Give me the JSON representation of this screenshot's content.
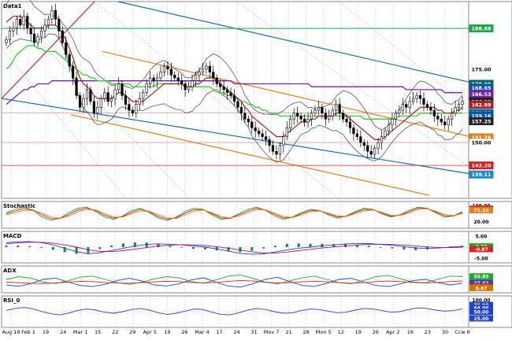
{
  "chart_data": [
    {
      "type": "candlestick",
      "panel": "price",
      "name": "Data1",
      "ylim": [
        131,
        198
      ],
      "price_labels": [
        {
          "value": 188.86,
          "color": "#1aa64a"
        },
        {
          "value": 175.0,
          "color": "#ffffff"
        },
        {
          "value": 170.0,
          "color": "#006666"
        },
        {
          "value": 168.65,
          "color": "#0055aa"
        },
        {
          "value": 166.53,
          "color": "#7722aa"
        },
        {
          "value": 164.02,
          "color": "#222222"
        },
        {
          "value": 162.95,
          "color": "#cc3333"
        },
        {
          "value": 162.89,
          "color": "#aa2222"
        },
        {
          "value": 160.08,
          "color": "#0066aa"
        },
        {
          "value": 159.16,
          "color": "#0055aa"
        },
        {
          "value": 157.25,
          "color": "#222222"
        },
        {
          "value": 151.76,
          "color": "#e08020"
        },
        {
          "value": 150.0,
          "color": "#ffffff"
        },
        {
          "value": 142.2,
          "color": "#cc2222"
        },
        {
          "value": 139.11,
          "color": "#2288cc"
        }
      ],
      "x_labels": [
        "Aug 19",
        "Feb 1",
        "19",
        "24",
        "Mar 1",
        "15",
        "22",
        "29",
        "Apr 5",
        "19",
        "26",
        "Mar 4",
        "17",
        "24",
        "31",
        "Mov 7",
        "21",
        "28",
        "Mon 5",
        "12",
        "19",
        "26",
        "Apr 2",
        "16",
        "23",
        "30",
        "Ccw 6"
      ],
      "closes": [
        185,
        188,
        189,
        192,
        190,
        193,
        189,
        187,
        184,
        186,
        188,
        190,
        192,
        195,
        192,
        188,
        184,
        180,
        176,
        172,
        166,
        162,
        165,
        168,
        164,
        160,
        162,
        165,
        167,
        164,
        165,
        168,
        170,
        166,
        163,
        161,
        160,
        163,
        165,
        167,
        170,
        172,
        171,
        172,
        174,
        176,
        175,
        173,
        172,
        171,
        170,
        168,
        169,
        171,
        173,
        174,
        175,
        176,
        174,
        172,
        170,
        169,
        168,
        167,
        166,
        164,
        162,
        160,
        158,
        157,
        155,
        154,
        153,
        152,
        151,
        149,
        147,
        146,
        149,
        152,
        155,
        158,
        160,
        159,
        158,
        157,
        158,
        160,
        161,
        162,
        160,
        158,
        159,
        161,
        163,
        160,
        158,
        157,
        155,
        153,
        152,
        150,
        149,
        147,
        146,
        148,
        150,
        152,
        154,
        156,
        158,
        160,
        161,
        163,
        162,
        164,
        165,
        166,
        165,
        163,
        162,
        161,
        159,
        158,
        157,
        156,
        158,
        160,
        162,
        163,
        164
      ],
      "mid_band": [
        191,
        192,
        193,
        193,
        193,
        192,
        191,
        190,
        189,
        189,
        189,
        189,
        190,
        190,
        190,
        189,
        187,
        185,
        182,
        179,
        175,
        172,
        170,
        169,
        168,
        166,
        165,
        165,
        165,
        165,
        165,
        166,
        167,
        167,
        166,
        165,
        164,
        164,
        164,
        164,
        165,
        166,
        167,
        168,
        169,
        170,
        170,
        170,
        170,
        170,
        170,
        169,
        169,
        169,
        170,
        170,
        171,
        172,
        172,
        172,
        171,
        170,
        169,
        168,
        167,
        166,
        165,
        164,
        162,
        161,
        159,
        158,
        157,
        156,
        155,
        154,
        153,
        152,
        152,
        152,
        153,
        154,
        155,
        156,
        157,
        157,
        157,
        158,
        158,
        159,
        159,
        159,
        159,
        159,
        160,
        160,
        160,
        159,
        158,
        157,
        156,
        155,
        154,
        153,
        152,
        151,
        151,
        151,
        152,
        153,
        154,
        155,
        156,
        157,
        158,
        159,
        160,
        161,
        162,
        162,
        162,
        162,
        162,
        161,
        161,
        160,
        160,
        160,
        161,
        161,
        162
      ],
      "ma_green": [
        175,
        176,
        178,
        180,
        181,
        182,
        183,
        183,
        183,
        182,
        182,
        181,
        181,
        181,
        181,
        180,
        179,
        178,
        177,
        176,
        175,
        174,
        173,
        173,
        172,
        172,
        171,
        171,
        171,
        171,
        170,
        170,
        170,
        170,
        170,
        170,
        169,
        169,
        169,
        169,
        169,
        169,
        169,
        170,
        170,
        170,
        170,
        170,
        170,
        170,
        170,
        169,
        169,
        169,
        169,
        169,
        169,
        169,
        169,
        168,
        168,
        167,
        167,
        166,
        166,
        165,
        165,
        164,
        164,
        163,
        163,
        162,
        162,
        161,
        161,
        160,
        160,
        160,
        159,
        159,
        159,
        159,
        159,
        159,
        159,
        159,
        159,
        159,
        159,
        159,
        159,
        159,
        159,
        159,
        159,
        159,
        159,
        159,
        159,
        159,
        159,
        159,
        158,
        158,
        158,
        158,
        158,
        158,
        158,
        158,
        158,
        158,
        159,
        159,
        159,
        159,
        159,
        159,
        160,
        160,
        160,
        160,
        160,
        160,
        160,
        160,
        160,
        160,
        160,
        160,
        160
      ],
      "ma_purple": [
        163,
        164,
        165,
        166,
        167,
        168,
        168,
        169,
        169,
        170,
        170,
        170,
        170,
        171,
        171,
        171,
        171,
        171,
        171,
        171,
        171,
        171,
        171,
        171,
        171,
        171,
        171,
        171,
        171,
        171,
        171,
        171,
        171,
        171,
        171,
        171,
        171,
        171,
        171,
        171,
        171,
        171,
        171,
        171,
        171,
        171,
        171,
        171,
        171,
        171,
        171,
        171,
        171,
        171,
        171,
        171,
        171,
        171,
        171,
        171,
        171,
        171,
        171,
        171,
        171,
        170,
        170,
        170,
        170,
        170,
        170,
        170,
        170,
        170,
        170,
        170,
        170,
        170,
        170,
        170,
        170,
        170,
        170,
        170,
        170,
        170,
        170,
        169,
        169,
        169,
        169,
        169,
        169,
        169,
        169,
        169,
        169,
        169,
        169,
        169,
        169,
        169,
        169,
        169,
        169,
        169,
        169,
        169,
        169,
        169,
        169,
        169,
        169,
        169,
        168,
        168,
        168,
        168,
        168,
        168,
        168,
        168,
        168,
        168,
        168,
        167,
        167,
        167,
        167,
        167,
        167
      ]
    },
    {
      "type": "line",
      "panel": "indicator",
      "name": "Stochastic",
      "ylim": [
        0,
        100
      ],
      "tick_labels": [
        {
          "value": 100.0,
          "color": "#ffffff"
        },
        {
          "value": 77.55,
          "color": "#dd2222"
        },
        {
          "value": 71.1,
          "color": "#e08020"
        },
        {
          "value": 20.0,
          "color": "#ffffff"
        }
      ],
      "series": [
        {
          "color": "#22aa22",
          "values": [
            60,
            75,
            85,
            70,
            40,
            25,
            35,
            60,
            80,
            85,
            65,
            40,
            30,
            45,
            70,
            80,
            60,
            35,
            25,
            40,
            65,
            80,
            75,
            50,
            30,
            35,
            55,
            75,
            85,
            70,
            45,
            30,
            40,
            60,
            75,
            70,
            50,
            35,
            45,
            65,
            80,
            75,
            55,
            40,
            50,
            70,
            85,
            80,
            60,
            40,
            45,
            65
          ]
        },
        {
          "color": "#dd2222",
          "values": [
            55,
            68,
            78,
            72,
            50,
            32,
            33,
            52,
            72,
            80,
            70,
            48,
            35,
            42,
            62,
            75,
            65,
            42,
            30,
            36,
            58,
            74,
            74,
            56,
            36,
            34,
            50,
            68,
            80,
            72,
            52,
            36,
            38,
            55,
            70,
            70,
            55,
            40,
            43,
            60,
            75,
            74,
            58,
            44,
            48,
            64,
            80,
            80,
            64,
            46,
            44,
            60
          ]
        },
        {
          "color": "#e08020",
          "values": [
            50,
            60,
            70,
            70,
            58,
            40,
            34,
            45,
            64,
            75,
            72,
            55,
            40,
            40,
            55,
            68,
            66,
            50,
            36,
            34,
            50,
            66,
            72,
            60,
            42,
            36,
            45,
            60,
            74,
            72,
            58,
            42,
            38,
            50,
            64,
            68,
            58,
            45,
            43,
            55,
            68,
            72,
            62,
            48,
            47,
            58,
            74,
            78,
            67,
            52,
            46,
            56
          ]
        }
      ]
    },
    {
      "type": "line",
      "panel": "indicator",
      "name": "MACD",
      "ylim": [
        -6,
        6
      ],
      "tick_labels": [
        {
          "value": 5.0,
          "color": "#ffffff"
        },
        {
          "value": 0.32,
          "color": "#22aa22"
        },
        {
          "value": -0.87,
          "color": "#dd2222"
        },
        {
          "value": -5.0,
          "color": "#ffffff"
        }
      ],
      "series": [
        {
          "color": "#2244cc",
          "values": [
            2.0,
            2.4,
            2.5,
            2.0,
            1.0,
            -0.5,
            -2.0,
            -3.0,
            -2.5,
            -1.5,
            -0.5,
            0.5,
            1.2,
            1.5,
            1.3,
            1.0,
            0.5,
            0.0,
            -0.8,
            -1.8,
            -2.8,
            -3.2,
            -3.0,
            -2.2,
            -1.2,
            -0.5,
            0.0,
            0.6,
            1.0,
            1.4,
            1.6,
            1.6,
            1.2,
            0.8,
            0.2,
            -0.4,
            -0.6,
            -0.4,
            0.0,
            0.4
          ]
        },
        {
          "color": "#aa1166",
          "values": [
            1.5,
            1.9,
            2.2,
            2.2,
            1.8,
            1.0,
            0.0,
            -1.2,
            -1.9,
            -2.0,
            -1.6,
            -0.9,
            -0.2,
            0.5,
            0.9,
            1.1,
            1.0,
            0.7,
            0.2,
            -0.5,
            -1.3,
            -2.1,
            -2.6,
            -2.6,
            -2.2,
            -1.6,
            -1.0,
            -0.4,
            0.1,
            0.5,
            0.9,
            1.2,
            1.3,
            1.2,
            0.9,
            0.5,
            0.1,
            -0.2,
            -0.2,
            0.0
          ]
        }
      ]
    },
    {
      "type": "line",
      "panel": "indicator",
      "name": "ADX",
      "ylim": [
        0,
        80
      ],
      "tick_labels": [
        {
          "value": 50.85,
          "color": "#22aa22"
        },
        {
          "value": 27.83,
          "color": "#2244cc"
        },
        {
          "value": 15.83,
          "color": "#dd2222"
        },
        {
          "value": 8.87,
          "color": "#cc7700"
        }
      ],
      "series": [
        {
          "color": "#22aa22",
          "values": [
            40,
            50,
            45,
            30,
            25,
            35,
            48,
            52,
            40,
            28,
            22,
            30,
            42,
            50,
            46,
            32,
            26,
            38,
            52,
            56,
            44,
            30,
            24,
            34,
            46,
            52,
            40,
            28,
            24,
            36,
            50,
            54,
            42,
            30,
            28,
            40,
            52,
            50
          ]
        },
        {
          "color": "#2244cc",
          "values": [
            20,
            15,
            25,
            40,
            45,
            30,
            18,
            14,
            22,
            36,
            44,
            34,
            20,
            16,
            24,
            38,
            46,
            30,
            16,
            12,
            24,
            40,
            48,
            32,
            18,
            14,
            26,
            40,
            44,
            30,
            18,
            14,
            24,
            36,
            40,
            28,
            20,
            26
          ]
        },
        {
          "color": "#dd2222",
          "values": [
            30,
            28,
            26,
            25,
            27,
            30,
            33,
            32,
            29,
            27,
            26,
            28,
            31,
            33,
            32,
            29,
            27,
            29,
            33,
            36,
            34,
            30,
            27,
            28,
            31,
            33,
            31,
            28,
            26,
            28,
            32,
            34,
            32,
            29,
            27,
            29,
            32,
            34
          ]
        }
      ]
    },
    {
      "type": "line",
      "panel": "indicator",
      "name": "RSI_0",
      "ylim": [
        0,
        100
      ],
      "tick_labels": [
        {
          "value": 100.0,
          "color": "#ffffff"
        },
        {
          "value": 75.0,
          "color": "#2244cc"
        },
        {
          "value": 64.06,
          "color": "#2244cc"
        },
        {
          "value": 50.0,
          "color": "#2244cc"
        },
        {
          "value": 25.0,
          "color": "#2244cc"
        }
      ],
      "series": [
        {
          "color": "#2244cc",
          "values": [
            55,
            62,
            66,
            60,
            50,
            42,
            38,
            45,
            55,
            60,
            56,
            48,
            44,
            50,
            58,
            62,
            56,
            46,
            40,
            44,
            52,
            60,
            58,
            48,
            40,
            38,
            46,
            56,
            62,
            58,
            50,
            44,
            46,
            54,
            60,
            58,
            52,
            46,
            48,
            56,
            62,
            60,
            54,
            48,
            50,
            58,
            64,
            62,
            56,
            52,
            54,
            60
          ]
        }
      ]
    }
  ]
}
